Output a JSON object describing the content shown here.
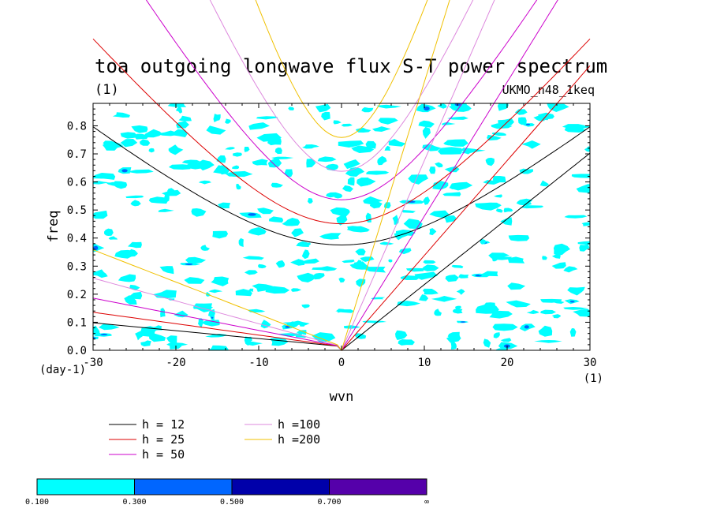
{
  "chart_data": {
    "type": "contour",
    "title": "toa outgoing longwave flux S-T power spectrum",
    "subtitle_left": "(1)",
    "subtitle_right": "UKMO_n48_1keq",
    "xlabel": "wvn",
    "ylabel": "freq",
    "x_unit": "(1)",
    "y_unit": "(day-1)",
    "xlim": [
      -30,
      30
    ],
    "ylim": [
      0,
      0.88
    ],
    "x_ticks": [
      -30,
      -20,
      -10,
      0,
      10,
      20,
      30
    ],
    "x_tick_labels": [
      "-30",
      "-20",
      "-10",
      "0",
      "10",
      "20",
      "30"
    ],
    "y_ticks": [
      0.0,
      0.1,
      0.2,
      0.3,
      0.4,
      0.5,
      0.6,
      0.7,
      0.8
    ],
    "y_tick_labels": [
      "0.0",
      "0.1",
      "0.2",
      "0.3",
      "0.4",
      "0.5",
      "0.6",
      "0.7",
      "0.8"
    ],
    "dispersion_curves": [
      {
        "label": "h = 12",
        "h": 12,
        "color": "#000000"
      },
      {
        "label": "h = 25",
        "h": 25,
        "color": "#dd0000"
      },
      {
        "label": "h = 50",
        "h": 50,
        "color": "#cc00cc"
      },
      {
        "label": "h =100",
        "h": 100,
        "color": "#dd88dd"
      },
      {
        "label": "h =200",
        "h": 200,
        "color": "#f0c000"
      }
    ],
    "color_levels": [
      {
        "from": "0.100",
        "to": "0.300",
        "color": "#00ffff"
      },
      {
        "from": "0.300",
        "to": "0.500",
        "color": "#0066ff"
      },
      {
        "from": "0.500",
        "to": "0.700",
        "color": "#0000aa"
      },
      {
        "from": "0.700",
        "to": "∞",
        "color": "#5500aa"
      }
    ],
    "colorbar_labels": [
      "0.100",
      "0.300",
      "0.500",
      "0.700",
      "∞"
    ],
    "grid": false
  }
}
